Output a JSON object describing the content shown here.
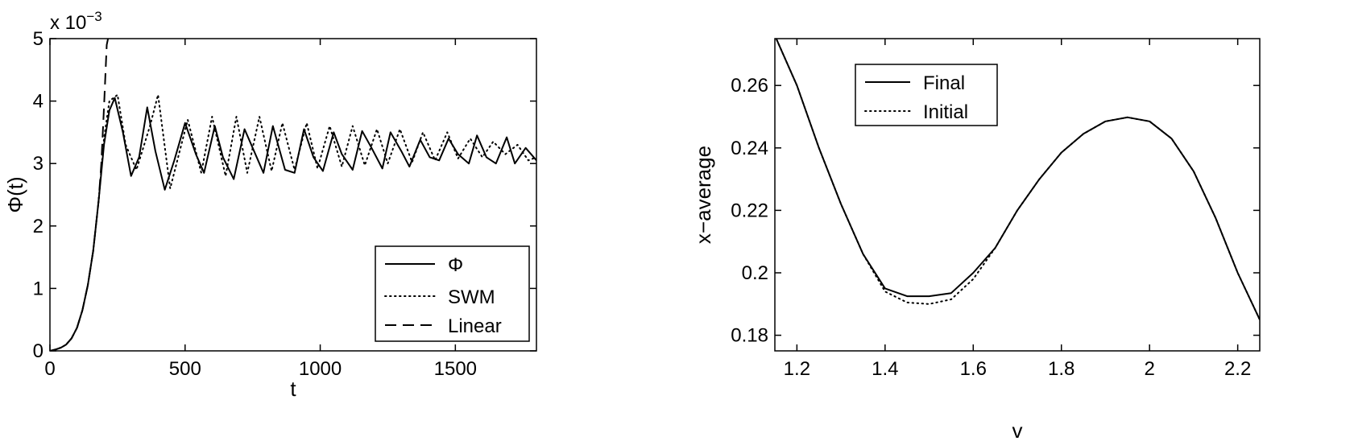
{
  "chart_data": [
    {
      "type": "line",
      "xlabel": "t",
      "ylabel": "Φ(t)",
      "y_multiplier": "x 10",
      "y_multiplier_exp": "−3",
      "xlim": [
        0,
        1800
      ],
      "ylim": [
        0,
        5
      ],
      "xticks": [
        0,
        500,
        1000,
        1500
      ],
      "xtick_labels": [
        "0",
        "500",
        "1000",
        "1500"
      ],
      "yticks": [
        0,
        1,
        2,
        3,
        4,
        5
      ],
      "ytick_labels": [
        "0",
        "1",
        "2",
        "3",
        "4",
        "5"
      ],
      "legend_position": "bottom-right",
      "series": [
        {
          "name": "Φ",
          "style": "solid",
          "x": [
            0,
            20,
            40,
            60,
            80,
            100,
            120,
            140,
            160,
            180,
            200,
            220,
            240,
            270,
            300,
            330,
            360,
            390,
            425,
            460,
            500,
            540,
            570,
            610,
            640,
            680,
            720,
            750,
            790,
            825,
            870,
            905,
            940,
            975,
            1010,
            1050,
            1080,
            1120,
            1155,
            1190,
            1230,
            1260,
            1300,
            1330,
            1370,
            1405,
            1440,
            1475,
            1510,
            1550,
            1580,
            1615,
            1650,
            1690,
            1720,
            1760,
            1800
          ],
          "y": [
            0.0,
            0.02,
            0.05,
            0.1,
            0.2,
            0.37,
            0.65,
            1.05,
            1.6,
            2.4,
            3.3,
            3.85,
            4.05,
            3.5,
            2.8,
            3.1,
            3.9,
            3.2,
            2.58,
            3.05,
            3.65,
            3.15,
            2.85,
            3.6,
            3.1,
            2.75,
            3.55,
            3.25,
            2.85,
            3.6,
            2.9,
            2.85,
            3.55,
            3.1,
            2.88,
            3.5,
            3.15,
            2.9,
            3.52,
            3.25,
            2.92,
            3.5,
            3.2,
            2.95,
            3.38,
            3.1,
            3.05,
            3.4,
            3.15,
            3.0,
            3.45,
            3.1,
            3.0,
            3.42,
            3.0,
            3.25,
            3.05
          ]
        },
        {
          "name": "SWM",
          "style": "dotted",
          "x": [
            0,
            20,
            40,
            60,
            80,
            100,
            120,
            140,
            160,
            180,
            200,
            220,
            250,
            280,
            320,
            370,
            400,
            445,
            480,
            510,
            560,
            600,
            650,
            690,
            730,
            775,
            820,
            860,
            905,
            950,
            990,
            1035,
            1080,
            1120,
            1165,
            1210,
            1250,
            1295,
            1340,
            1380,
            1425,
            1470,
            1510,
            1555,
            1600,
            1640,
            1685,
            1730,
            1770,
            1800
          ],
          "y": [
            0.0,
            0.02,
            0.05,
            0.1,
            0.2,
            0.37,
            0.65,
            1.05,
            1.6,
            2.4,
            3.4,
            4.0,
            4.1,
            3.3,
            2.9,
            3.6,
            4.1,
            2.6,
            3.2,
            3.7,
            2.85,
            3.75,
            2.8,
            3.75,
            2.85,
            3.75,
            2.88,
            3.65,
            2.9,
            3.65,
            2.92,
            3.6,
            2.95,
            3.6,
            2.97,
            3.55,
            3.0,
            3.55,
            3.02,
            3.5,
            3.05,
            3.5,
            3.08,
            3.4,
            3.1,
            3.35,
            3.15,
            3.3,
            3.05,
            3.1
          ]
        },
        {
          "name": "Linear",
          "style": "dashed",
          "x": [
            0,
            20,
            40,
            60,
            80,
            100,
            120,
            140,
            160,
            180,
            190,
            200,
            205,
            210,
            215
          ],
          "y": [
            0.0,
            0.02,
            0.05,
            0.1,
            0.2,
            0.37,
            0.65,
            1.05,
            1.6,
            2.4,
            3.0,
            3.9,
            4.4,
            4.9,
            5.0
          ]
        }
      ]
    },
    {
      "type": "line",
      "xlabel": "v",
      "ylabel": "x−average",
      "xlim": [
        1.15,
        2.25
      ],
      "ylim": [
        0.175,
        0.275
      ],
      "xticks": [
        1.2,
        1.4,
        1.6,
        1.8,
        2.0,
        2.2
      ],
      "xtick_labels": [
        "1.2",
        "1.4",
        "1.6",
        "1.8",
        "2",
        "2.2"
      ],
      "yticks": [
        0.18,
        0.2,
        0.22,
        0.24,
        0.26
      ],
      "ytick_labels": [
        "0.18",
        "0.2",
        "0.22",
        "0.24",
        "0.26"
      ],
      "legend_position": "top-left",
      "series": [
        {
          "name": "Final",
          "style": "solid",
          "x": [
            1.15,
            1.2,
            1.25,
            1.3,
            1.35,
            1.4,
            1.45,
            1.5,
            1.55,
            1.6,
            1.65,
            1.7,
            1.75,
            1.8,
            1.85,
            1.9,
            1.95,
            2.0,
            2.05,
            2.1,
            2.15,
            2.2,
            2.25
          ],
          "y": [
            0.276,
            0.26,
            0.24,
            0.222,
            0.206,
            0.195,
            0.1925,
            0.1925,
            0.1935,
            0.2,
            0.208,
            0.22,
            0.23,
            0.2385,
            0.2445,
            0.2485,
            0.2498,
            0.2485,
            0.243,
            0.2325,
            0.2175,
            0.2,
            0.185
          ]
        },
        {
          "name": "Initial",
          "style": "dotted",
          "x": [
            1.15,
            1.2,
            1.25,
            1.3,
            1.35,
            1.4,
            1.45,
            1.5,
            1.55,
            1.6,
            1.65,
            1.7,
            1.75,
            1.8,
            1.85,
            1.9,
            1.95,
            2.0,
            2.05,
            2.1,
            2.15,
            2.2,
            2.25
          ],
          "y": [
            0.276,
            0.26,
            0.24,
            0.222,
            0.206,
            0.194,
            0.1905,
            0.19,
            0.1915,
            0.198,
            0.208,
            0.22,
            0.23,
            0.2385,
            0.2445,
            0.2485,
            0.2498,
            0.2485,
            0.243,
            0.2325,
            0.2175,
            0.2,
            0.185
          ]
        }
      ]
    }
  ]
}
